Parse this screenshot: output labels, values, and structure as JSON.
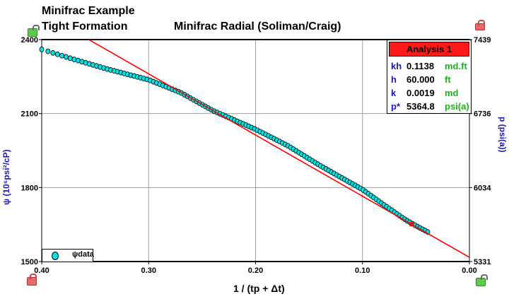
{
  "header": {
    "line1": "Minifrac Example",
    "line2": "Tight Formation"
  },
  "analysis": {
    "title": "Analysis 1",
    "rows": [
      {
        "key": "kh",
        "value": "0.1138",
        "unit": "md.ft"
      },
      {
        "key": "h",
        "value": "60.000",
        "unit": "ft"
      },
      {
        "key": "k",
        "value": "0.0019",
        "unit": "md"
      },
      {
        "key": "p*",
        "value": "5364.8",
        "unit": "psi(a)"
      }
    ]
  },
  "legend": {
    "label": "ψdata"
  },
  "colors": {
    "data": "#00e5e5",
    "fit": "#ff0000",
    "analysis_header": "#ff1a1a"
  },
  "chart_data": {
    "type": "scatter",
    "title": "Minifrac Radial (Soliman/Craig)",
    "xlabel": "1 / (tp + Δt)",
    "ylabel": "ψ (10⁶psi²/cP)",
    "y2label": "p (psi(a))",
    "xlim": [
      0.4,
      0.0
    ],
    "ylim": [
      1500,
      2400
    ],
    "y2lim": [
      5331,
      7439
    ],
    "xticks": [
      "0.40",
      "0.30",
      "0.20",
      "0.10",
      "0.00"
    ],
    "yticks": [
      "2400",
      "2100",
      "1800",
      "1500"
    ],
    "y2ticks": [
      "7439",
      "6736",
      "6034",
      "5331"
    ],
    "grid": true,
    "series": [
      {
        "name": "ψdata",
        "kind": "points",
        "x": [
          0.4,
          0.37,
          0.34,
          0.3,
          0.27,
          0.24,
          0.2,
          0.17,
          0.14,
          0.1,
          0.08,
          0.06,
          0.05,
          0.039
        ],
        "y": [
          2360,
          2320,
          2282,
          2237,
          2185,
          2112,
          2036,
          1970,
          1890,
          1792,
          1730,
          1670,
          1645,
          1620
        ]
      },
      {
        "name": "fit",
        "kind": "line",
        "x": [
          0.356,
          0.0
        ],
        "y": [
          2400,
          1517
        ]
      }
    ]
  }
}
